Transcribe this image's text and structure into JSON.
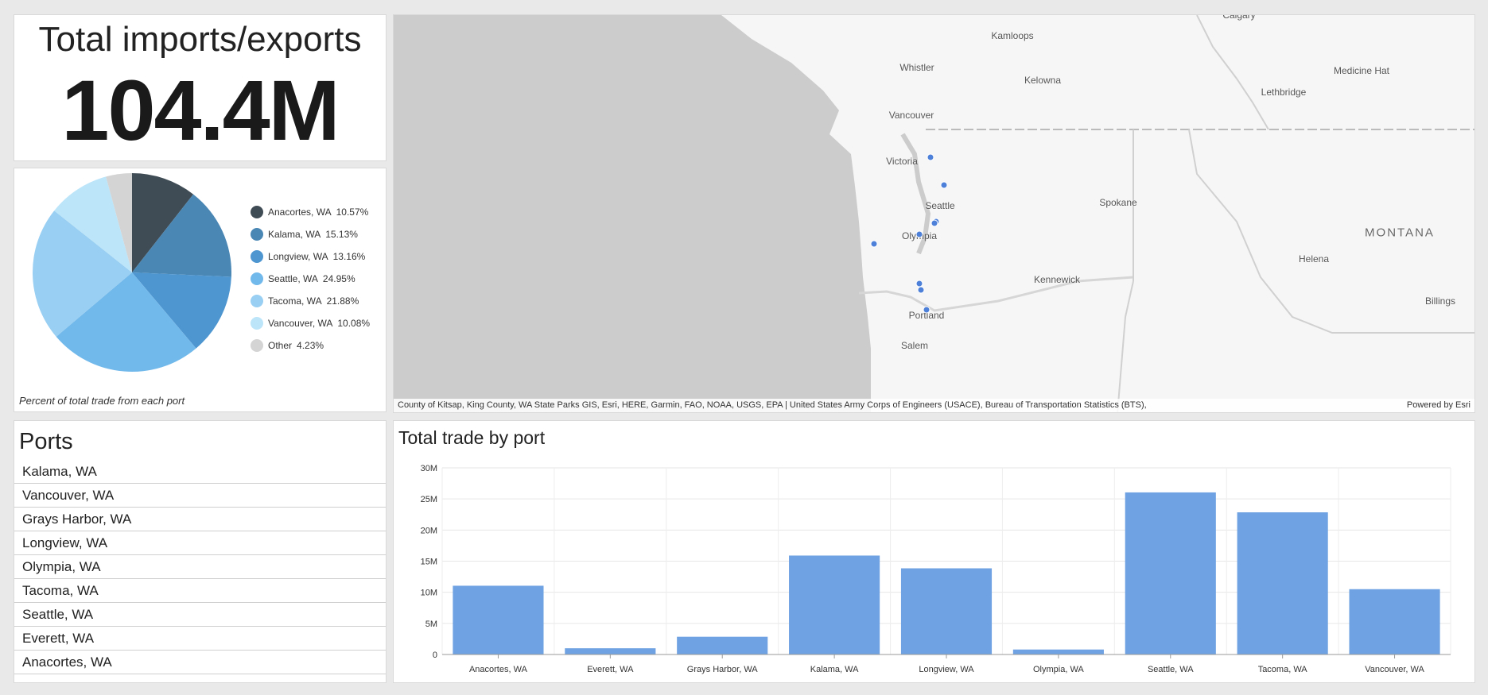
{
  "kpi": {
    "title": "Total imports/exports",
    "value": "104.4M"
  },
  "pie": {
    "caption": "Percent of total trade from each port",
    "slices": [
      {
        "label": "Anacortes, WA",
        "pct": "10.57%",
        "value": 10.57,
        "color": "#404c55"
      },
      {
        "label": "Kalama, WA",
        "pct": "15.13%",
        "value": 15.13,
        "color": "#4a87b5"
      },
      {
        "label": "Longview, WA",
        "pct": "13.16%",
        "value": 13.16,
        "color": "#4e96d0"
      },
      {
        "label": "Seattle, WA",
        "pct": "24.95%",
        "value": 24.95,
        "color": "#72b9eb"
      },
      {
        "label": "Tacoma, WA",
        "pct": "21.88%",
        "value": 21.88,
        "color": "#99cff2"
      },
      {
        "label": "Vancouver, WA",
        "pct": "10.08%",
        "value": 10.08,
        "color": "#bce5f9"
      },
      {
        "label": "Other",
        "pct": "4.23%",
        "value": 4.23,
        "color": "#d4d4d4"
      }
    ]
  },
  "ports": {
    "title": "Ports",
    "items": [
      "Kalama, WA",
      "Vancouver, WA",
      "Grays Harbor, WA",
      "Longview, WA",
      "Olympia, WA",
      "Tacoma, WA",
      "Seattle, WA",
      "Everett, WA",
      "Anacortes, WA"
    ]
  },
  "map": {
    "labels": [
      "Calgary",
      "Kamloops",
      "Whistler",
      "Kelowna",
      "Medicine Hat",
      "Lethbridge",
      "Vancouver",
      "Victoria",
      "Seattle",
      "Spokane",
      "MONTANA",
      "Olympia",
      "Helena",
      "Kennewick",
      "Portland",
      "Billings",
      "Salem"
    ],
    "attribution": "County of Kitsap, King County, WA State Parks GIS, Esri, HERE, Garmin, FAO, NOAA, USGS, EPA | United States Army Corps of Engineers (USACE), Bureau of Transportation Statistics (BTS),",
    "powered_by": "Powered by Esri",
    "marker_color": "#4d80d8"
  },
  "chart_data": {
    "type": "bar",
    "title": "Total trade by port",
    "categories": [
      "Anacortes, WA",
      "Everett, WA",
      "Grays Harbor, WA",
      "Kalama, WA",
      "Longview, WA",
      "Olympia, WA",
      "Seattle, WA",
      "Tacoma, WA",
      "Vancouver, WA"
    ],
    "values": [
      11050000,
      1000000,
      2850000,
      15900000,
      13850000,
      800000,
      26050000,
      22850000,
      10500000
    ],
    "ylim": [
      0,
      30000000
    ],
    "yticks": [
      "0",
      "5M",
      "10M",
      "15M",
      "20M",
      "25M",
      "30M"
    ],
    "grid": true,
    "color": "#6fa2e2"
  }
}
